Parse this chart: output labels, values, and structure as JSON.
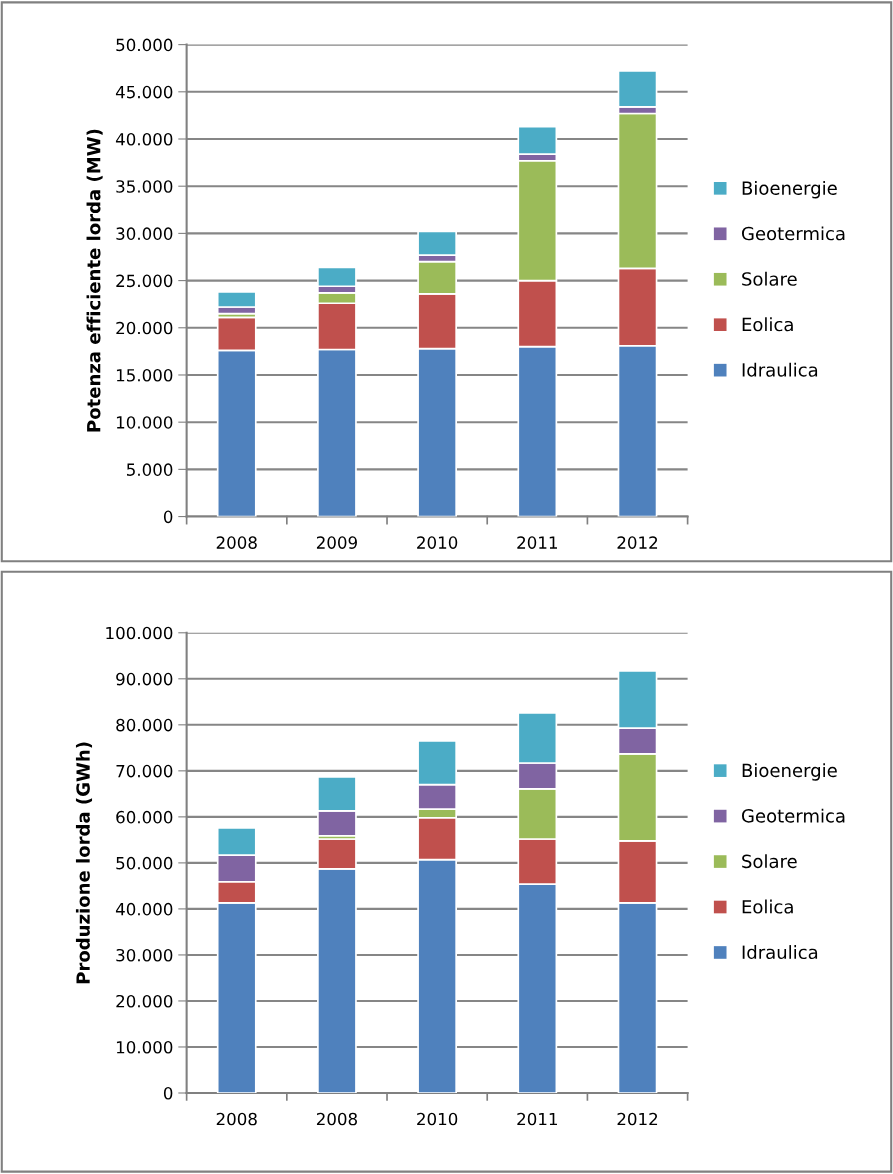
{
  "chart_data": [
    {
      "type": "bar",
      "stacked": true,
      "ylabel": "Potenza efficiente lorda (MW)",
      "categories": [
        "2008",
        "2009",
        "2010",
        "2011",
        "2012"
      ],
      "series": [
        {
          "name": "Idraulica",
          "color": "#4f81bd",
          "values": [
            17600,
            17700,
            17800,
            18000,
            18100
          ]
        },
        {
          "name": "Eolica",
          "color": "#c0504d",
          "values": [
            3500,
            4900,
            5800,
            7000,
            8200
          ]
        },
        {
          "name": "Solare",
          "color": "#9bbb59",
          "values": [
            400,
            1100,
            3400,
            12700,
            16400
          ]
        },
        {
          "name": "Geotermica",
          "color": "#8064a2",
          "values": [
            700,
            700,
            700,
            700,
            700
          ]
        },
        {
          "name": "Bioenergie",
          "color": "#4bacc6",
          "values": [
            1600,
            2000,
            2500,
            2900,
            3800
          ]
        }
      ],
      "ylim": [
        0,
        50000
      ],
      "yticks": [
        {
          "value": 0,
          "label": "0"
        },
        {
          "value": 5000,
          "label": "5.000"
        },
        {
          "value": 10000,
          "label": "10.000"
        },
        {
          "value": 15000,
          "label": "15.000"
        },
        {
          "value": 20000,
          "label": "20.000"
        },
        {
          "value": 25000,
          "label": "25.000"
        },
        {
          "value": 30000,
          "label": "30.000"
        },
        {
          "value": 35000,
          "label": "35.000"
        },
        {
          "value": 40000,
          "label": "40.000"
        },
        {
          "value": 45000,
          "label": "45.000"
        },
        {
          "value": 50000,
          "label": "50.000"
        }
      ],
      "grid": "y",
      "legend": "right"
    },
    {
      "type": "bar",
      "stacked": true,
      "ylabel": "Produzione lorda (GWh)",
      "categories": [
        "2008",
        "2008",
        "2010",
        "2011",
        "2012"
      ],
      "series": [
        {
          "name": "Idraulica",
          "color": "#4f81bd",
          "values": [
            41300,
            48700,
            50700,
            45400,
            41300
          ]
        },
        {
          "name": "Eolica",
          "color": "#c0504d",
          "values": [
            4600,
            6500,
            9100,
            9800,
            13500
          ]
        },
        {
          "name": "Solare",
          "color": "#9bbb59",
          "values": [
            0,
            700,
            1900,
            10900,
            18900
          ]
        },
        {
          "name": "Geotermica",
          "color": "#8064a2",
          "values": [
            5800,
            5400,
            5300,
            5600,
            5600
          ]
        },
        {
          "name": "Bioenergie",
          "color": "#4bacc6",
          "values": [
            5900,
            7400,
            9500,
            10900,
            12400
          ]
        }
      ],
      "ylim": [
        0,
        100000
      ],
      "yticks": [
        {
          "value": 0,
          "label": "0"
        },
        {
          "value": 10000,
          "label": "10.000"
        },
        {
          "value": 20000,
          "label": "20.000"
        },
        {
          "value": 30000,
          "label": "30.000"
        },
        {
          "value": 40000,
          "label": "40.000"
        },
        {
          "value": 50000,
          "label": "50.000"
        },
        {
          "value": 60000,
          "label": "60.000"
        },
        {
          "value": 70000,
          "label": "70.000"
        },
        {
          "value": 80000,
          "label": "80.000"
        },
        {
          "value": 90000,
          "label": "90.000"
        },
        {
          "value": 100000,
          "label": "100.000"
        }
      ],
      "grid": "y",
      "legend": "right"
    }
  ]
}
